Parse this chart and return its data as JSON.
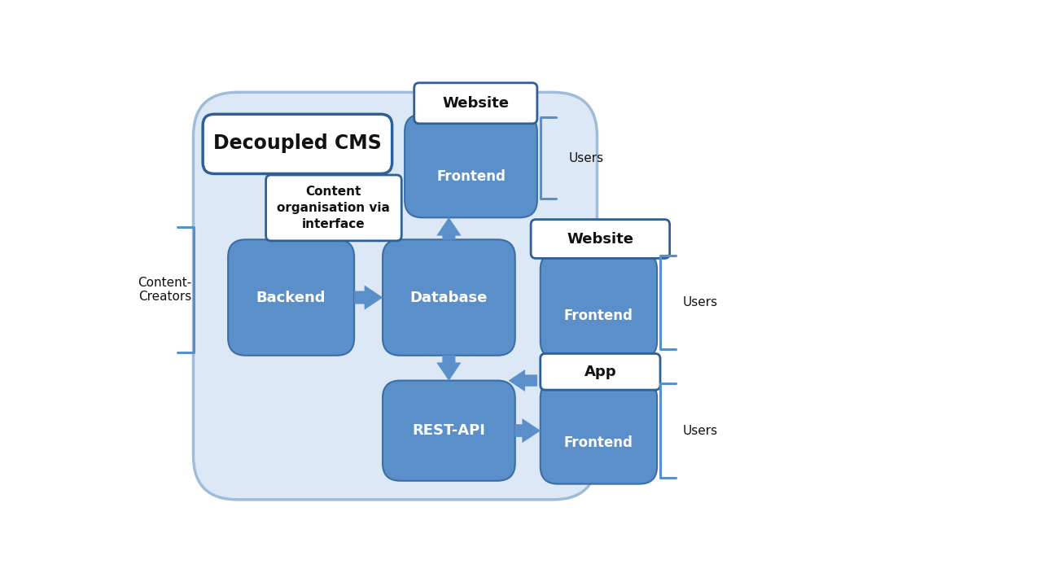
{
  "bg_color": "#ffffff",
  "cms_bg_color": "#dce8f5",
  "cms_bg_edge": "#a0bcd8",
  "medium_blue": "#5b8fc9",
  "dark_blue": "#3a6ea5",
  "label_box_edge": "#2e5f96",
  "white": "#ffffff",
  "bracket_color": "#5b8fc9",
  "title": "Decoupled CMS",
  "backend_label": "Backend",
  "database_label": "Database",
  "restapi_label": "REST-API",
  "frontend1_label": "Frontend",
  "frontend2_label": "Frontend",
  "frontend3_label": "Frontend",
  "website1_label": "Website",
  "website2_label": "Website",
  "app_label": "App",
  "content_org_label": "Content\norganisation via\ninterface",
  "content_creators_label": "Content-\nCreators",
  "users1_label": "Users",
  "users2_label": "Users",
  "users3_label": "Users"
}
